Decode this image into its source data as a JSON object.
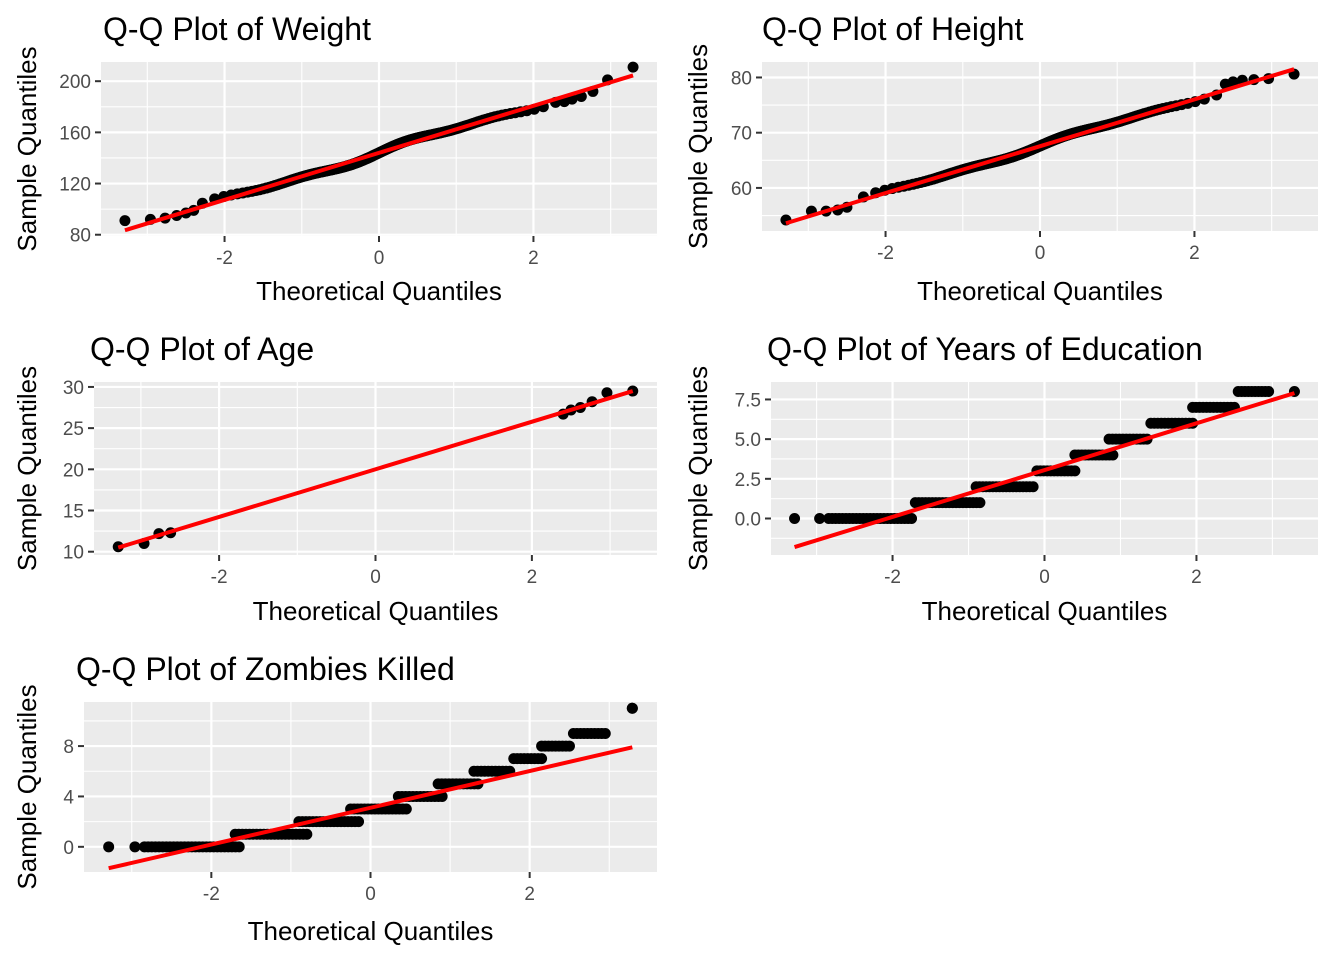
{
  "chart_data": [
    {
      "type": "scatter",
      "title": "Q-Q Plot of Weight",
      "xlabel": "Theoretical Quantiles",
      "ylabel": "Sample Quantiles",
      "xlim": [
        -3.6,
        3.6
      ],
      "ylim": [
        79,
        215
      ],
      "xticks": [
        -2,
        0,
        2
      ],
      "yticks": [
        80,
        120,
        160,
        200
      ],
      "line": {
        "x0": -3.29,
        "y0": 83.5,
        "x1": 3.29,
        "y1": 204.5,
        "color": "#ff0000"
      },
      "points": {
        "kind": "continuous",
        "x": [
          -3.29,
          -2.96,
          -2.77,
          -2.62,
          -2.5,
          -2.4,
          2.4,
          2.5,
          2.62,
          2.77,
          2.96,
          3.29
        ],
        "y": [
          91,
          92,
          93,
          95,
          97,
          99,
          184,
          186,
          188,
          192,
          201,
          211
        ],
        "n": 1000,
        "slope": 18.4,
        "intercept": 144,
        "amp": 2.0
      }
    },
    {
      "type": "scatter",
      "title": "Q-Q Plot of Height",
      "xlabel": "Theoretical Quantiles",
      "ylabel": "Sample Quantiles",
      "xlim": [
        -3.6,
        3.6
      ],
      "ylim": [
        52.2,
        82.8
      ],
      "xticks": [
        -2,
        0,
        2
      ],
      "yticks": [
        60,
        70,
        80
      ],
      "line": {
        "x0": -3.29,
        "y0": 53.6,
        "x1": 3.29,
        "y1": 81.5,
        "color": "#ff0000"
      },
      "points": {
        "kind": "continuous",
        "x": [
          -3.29,
          -2.96,
          -2.77,
          -2.62,
          -2.5,
          2.4,
          2.5,
          2.62,
          2.77,
          2.96,
          3.29
        ],
        "y": [
          54.2,
          55.8,
          55.8,
          56,
          56.5,
          78.8,
          79.2,
          79.5,
          79.6,
          79.8,
          80.6
        ],
        "n": 1000,
        "slope": 4.24,
        "intercept": 67.6,
        "amp": 0.35
      }
    },
    {
      "type": "scatter",
      "title": "Q-Q Plot of Age",
      "xlabel": "Theoretical Quantiles",
      "ylabel": "Sample Quantiles",
      "xlim": [
        -3.6,
        3.6
      ],
      "ylim": [
        9.6,
        30.6
      ],
      "xticks": [
        -2,
        0,
        2
      ],
      "yticks": [
        10,
        15,
        20,
        25,
        30
      ],
      "line": {
        "x0": -3.29,
        "y0": 10.5,
        "x1": 3.29,
        "y1": 29.5,
        "color": "#ff0000"
      },
      "points": {
        "kind": "continuous",
        "x": [
          -3.29,
          -2.96,
          -2.77,
          -2.62,
          2.4,
          2.5,
          2.62,
          2.77,
          2.96,
          3.29
        ],
        "y": [
          10.6,
          11.0,
          12.2,
          12.3,
          26.7,
          27.2,
          27.5,
          28.2,
          29.3,
          29.5
        ],
        "n": 1000,
        "slope": 2.9,
        "intercept": 20.0,
        "amp": 0.25
      }
    },
    {
      "type": "scatter",
      "title": "Q-Q Plot of Years of Education",
      "xlabel": "Theoretical Quantiles",
      "ylabel": "Sample Quantiles",
      "xlim": [
        -3.6,
        3.6
      ],
      "ylim": [
        -2.3,
        8.6
      ],
      "xticks": [
        -2,
        0,
        2
      ],
      "yticks": [
        0.0,
        2.5,
        5.0,
        7.5
      ],
      "ytick_labels": [
        "0.0",
        "2.5",
        "5.0",
        "7.5"
      ],
      "line": {
        "x0": -3.29,
        "y0": -1.8,
        "x1": 3.29,
        "y1": 7.9,
        "color": "#ff0000"
      },
      "points": {
        "kind": "steps",
        "steps": [
          {
            "y": 0,
            "from": -3.29,
            "to": -1.75,
            "singles": [
              -3.29,
              -2.96
            ]
          },
          {
            "y": 1,
            "from": -1.7,
            "to": -0.85
          },
          {
            "y": 2,
            "from": -0.9,
            "to": -0.15
          },
          {
            "y": 3,
            "from": -0.1,
            "to": 0.4
          },
          {
            "y": 4,
            "from": 0.4,
            "to": 0.9
          },
          {
            "y": 5,
            "from": 0.85,
            "to": 1.35
          },
          {
            "y": 6,
            "from": 1.4,
            "to": 1.95
          },
          {
            "y": 7,
            "from": 1.95,
            "to": 2.5
          },
          {
            "y": 8,
            "from": 2.55,
            "to": 2.95,
            "singles": [
              3.29
            ]
          }
        ]
      }
    },
    {
      "type": "scatter",
      "title": "Q-Q Plot of Zombies Killed",
      "xlabel": "Theoretical Quantiles",
      "ylabel": "Sample Quantiles",
      "xlim": [
        -3.6,
        3.6
      ],
      "ylim": [
        -2.0,
        11.5
      ],
      "xticks": [
        -2,
        0,
        2
      ],
      "yticks": [
        0,
        4,
        8
      ],
      "line": {
        "x0": -3.29,
        "y0": -1.7,
        "x1": 3.29,
        "y1": 7.9,
        "color": "#ff0000"
      },
      "points": {
        "kind": "steps",
        "steps": [
          {
            "y": 0,
            "from": -3.29,
            "to": -1.65,
            "singles": [
              -3.29,
              -2.96
            ]
          },
          {
            "y": 1,
            "from": -1.7,
            "to": -0.8
          },
          {
            "y": 2,
            "from": -0.9,
            "to": -0.15
          },
          {
            "y": 3,
            "from": -0.25,
            "to": 0.45
          },
          {
            "y": 4,
            "from": 0.35,
            "to": 0.9
          },
          {
            "y": 5,
            "from": 0.85,
            "to": 1.35
          },
          {
            "y": 6,
            "from": 1.3,
            "to": 1.75
          },
          {
            "y": 7,
            "from": 1.8,
            "to": 2.15
          },
          {
            "y": 8,
            "from": 2.15,
            "to": 2.5
          },
          {
            "y": 9,
            "from": 2.55,
            "to": 2.95
          },
          {
            "y": 11,
            "from": 3.29,
            "to": 3.29
          }
        ]
      }
    }
  ]
}
